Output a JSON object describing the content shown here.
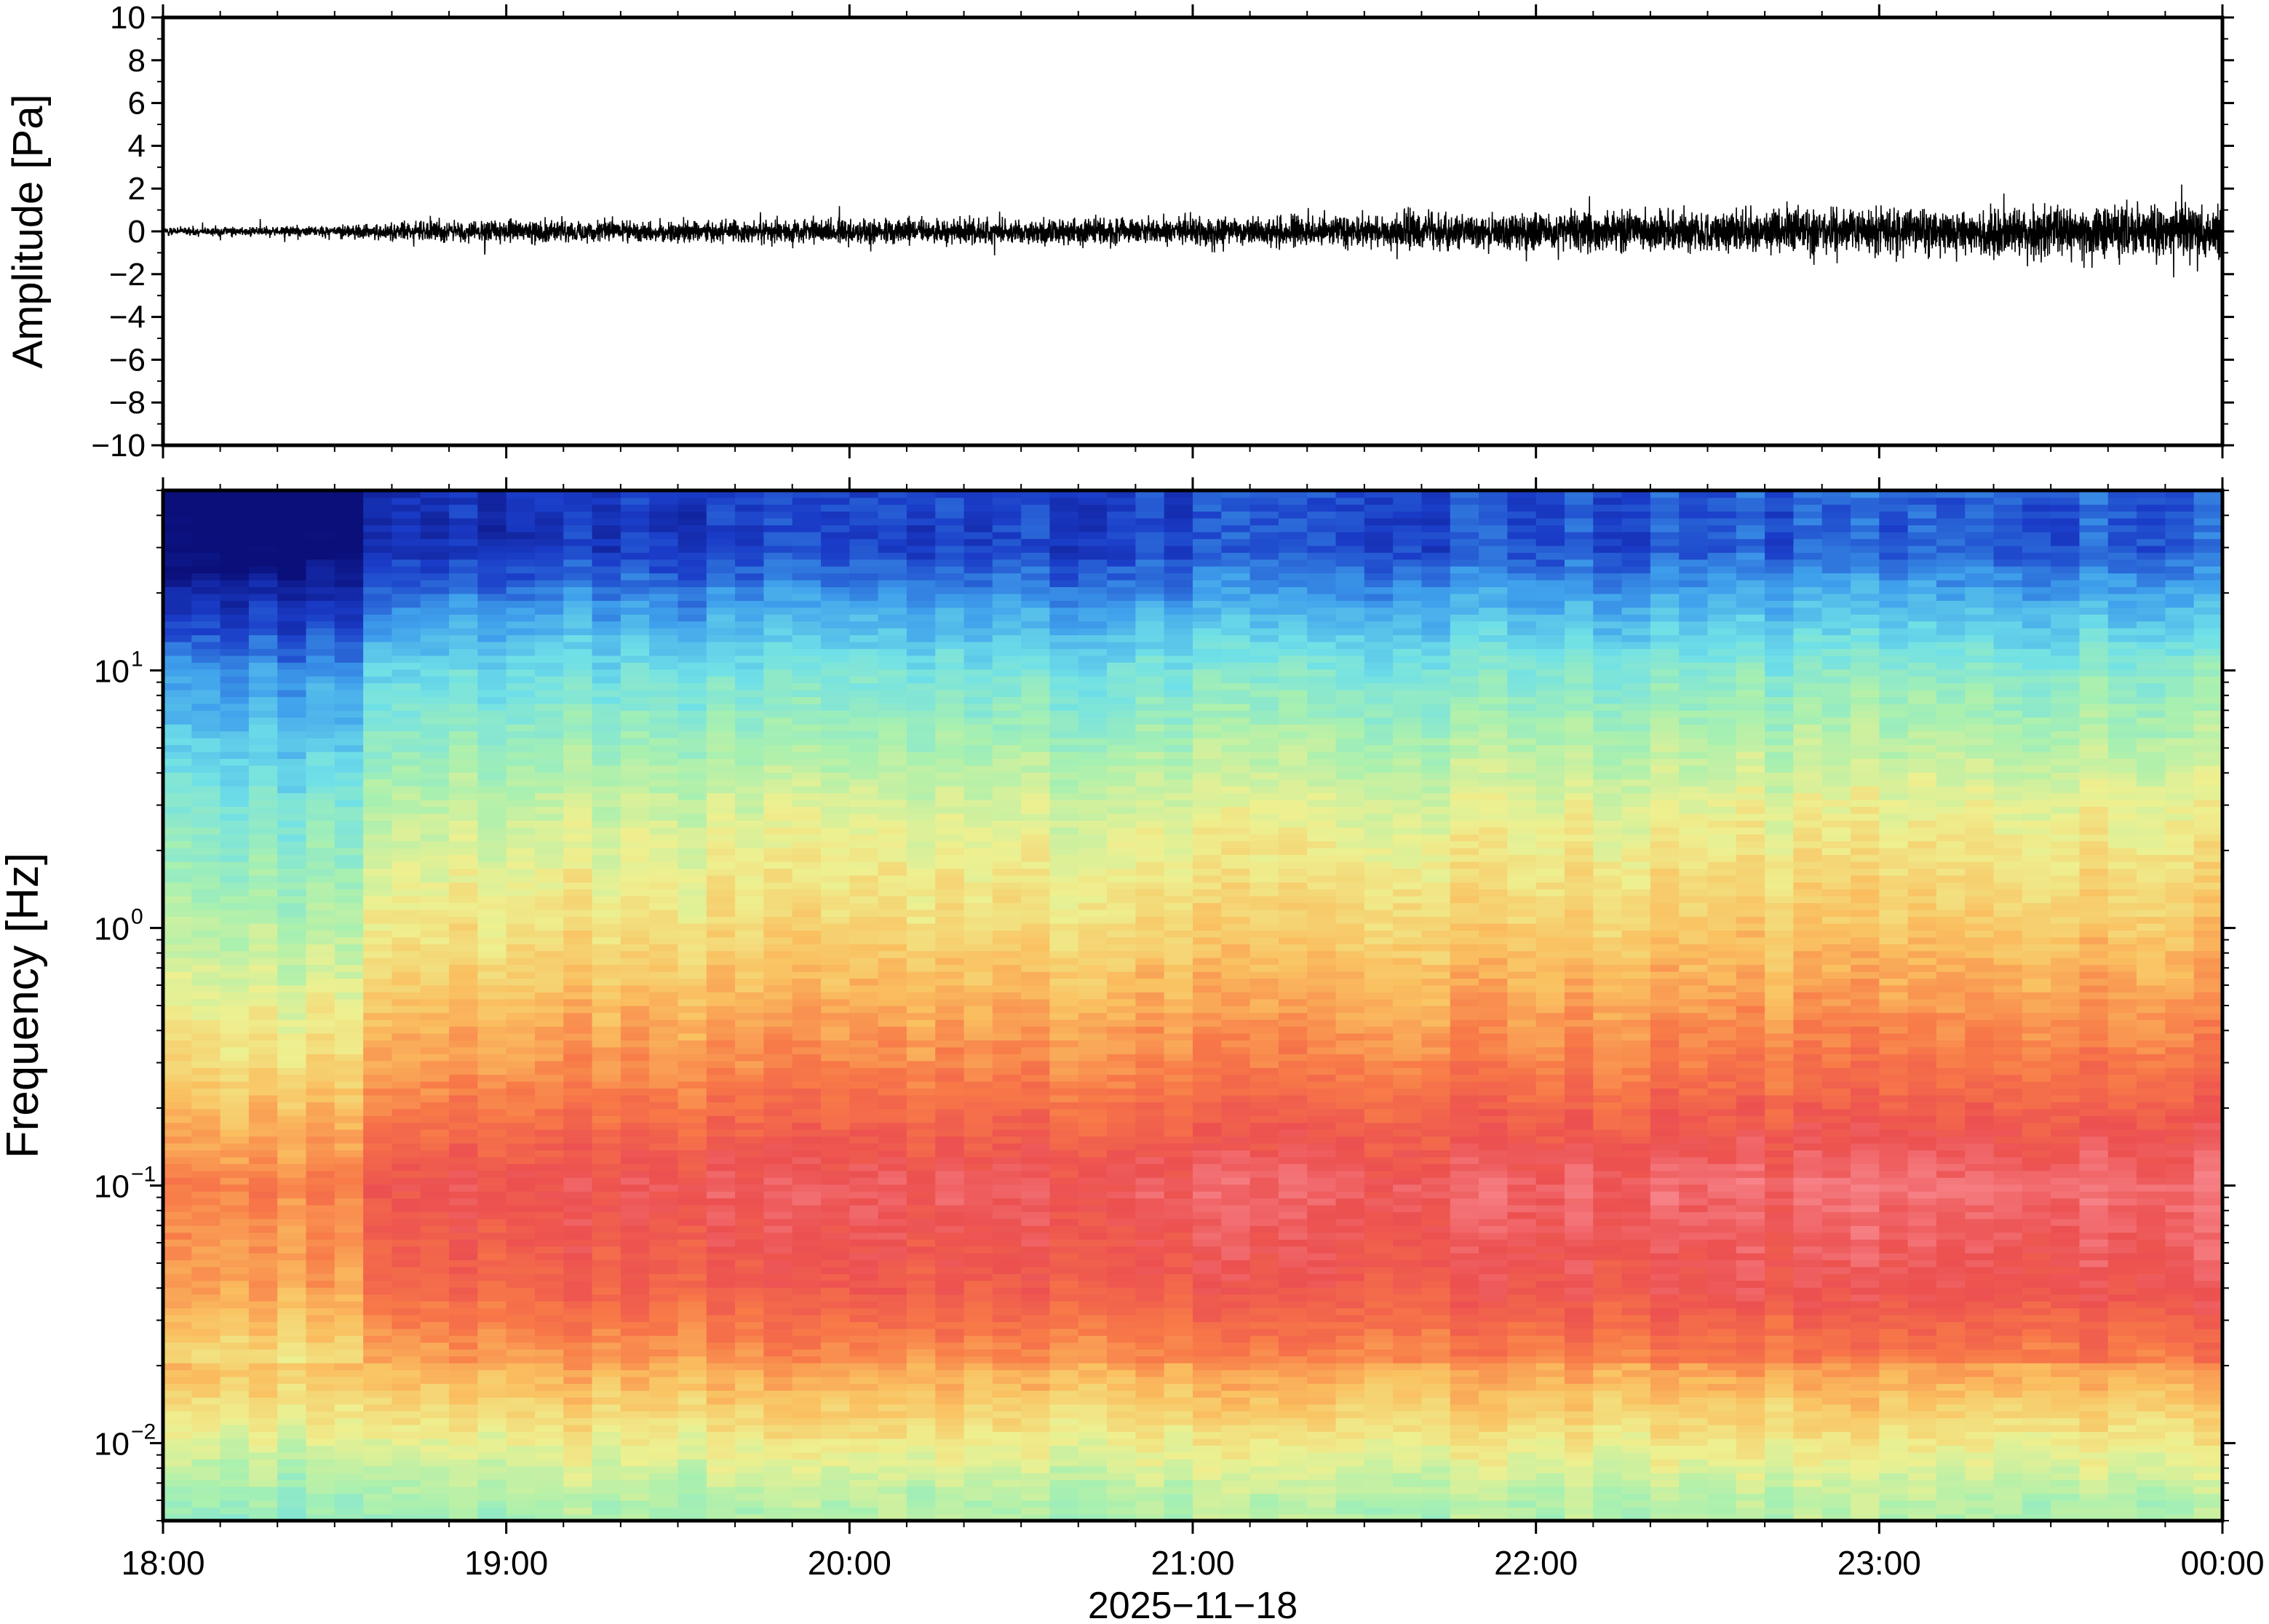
{
  "chart_data": [
    {
      "type": "line",
      "ylabel": "Amplitude [Pa]",
      "ylim": [
        -10,
        10
      ],
      "yticks": [
        {
          "value": 10,
          "label": "10"
        },
        {
          "value": 8,
          "label": "8"
        },
        {
          "value": 6,
          "label": "6"
        },
        {
          "value": 4,
          "label": "4"
        },
        {
          "value": 2,
          "label": "2"
        },
        {
          "value": 0,
          "label": "0"
        },
        {
          "value": -2,
          "label": "−2"
        },
        {
          "value": -4,
          "label": "−4"
        },
        {
          "value": -6,
          "label": "−6"
        },
        {
          "value": -8,
          "label": "−8"
        },
        {
          "value": -10,
          "label": "−10"
        }
      ],
      "x_range": [
        "2025-11-18 18:00",
        "2025-11-19 00:00"
      ],
      "envelope": {
        "time_h": [
          18.0,
          18.5,
          18.75,
          19.0,
          19.5,
          20.0,
          20.5,
          21.0,
          21.5,
          22.0,
          22.5,
          23.0,
          23.5,
          24.0
        ],
        "amplitude_pa": [
          0.3,
          0.45,
          0.75,
          0.8,
          0.8,
          0.9,
          0.95,
          1.0,
          1.2,
          1.4,
          1.55,
          1.7,
          1.8,
          1.9
        ]
      },
      "color": "#000000"
    },
    {
      "type": "heatmap",
      "ylabel": "Frequency [Hz]",
      "yscale": "log",
      "ylim": [
        0.005,
        50
      ],
      "yticks": [
        {
          "value": 0.01,
          "base": "10",
          "exp": "−2"
        },
        {
          "value": 0.1,
          "base": "10",
          "exp": "−1"
        },
        {
          "value": 1,
          "base": "10",
          "exp": "0"
        },
        {
          "value": 10,
          "base": "10",
          "exp": "1"
        }
      ],
      "x_range": [
        "2025-11-18 18:00",
        "2025-11-19 00:00"
      ],
      "colormap": [
        "#0a0f7a",
        "#1a3cc8",
        "#3fa0ec",
        "#6fe0e8",
        "#a8f0b0",
        "#eef090",
        "#fac060",
        "#f87a48",
        "#ec5050",
        "#f88a90"
      ],
      "description_profile": {
        "frequency_hz": [
          0.006,
          0.01,
          0.02,
          0.04,
          0.1,
          0.3,
          1,
          3,
          10,
          30
        ],
        "relative_power": [
          0.45,
          0.55,
          0.7,
          0.82,
          0.88,
          0.72,
          0.58,
          0.48,
          0.32,
          0.08
        ]
      }
    }
  ],
  "xaxis": {
    "ticks": [
      {
        "hour": 18,
        "label": "18:00"
      },
      {
        "hour": 19,
        "label": "19:00"
      },
      {
        "hour": 20,
        "label": "20:00"
      },
      {
        "hour": 21,
        "label": "21:00"
      },
      {
        "hour": 22,
        "label": "22:00"
      },
      {
        "hour": 23,
        "label": "23:00"
      },
      {
        "hour": 24,
        "label": "00:00"
      }
    ],
    "label": "2025−11−18"
  }
}
